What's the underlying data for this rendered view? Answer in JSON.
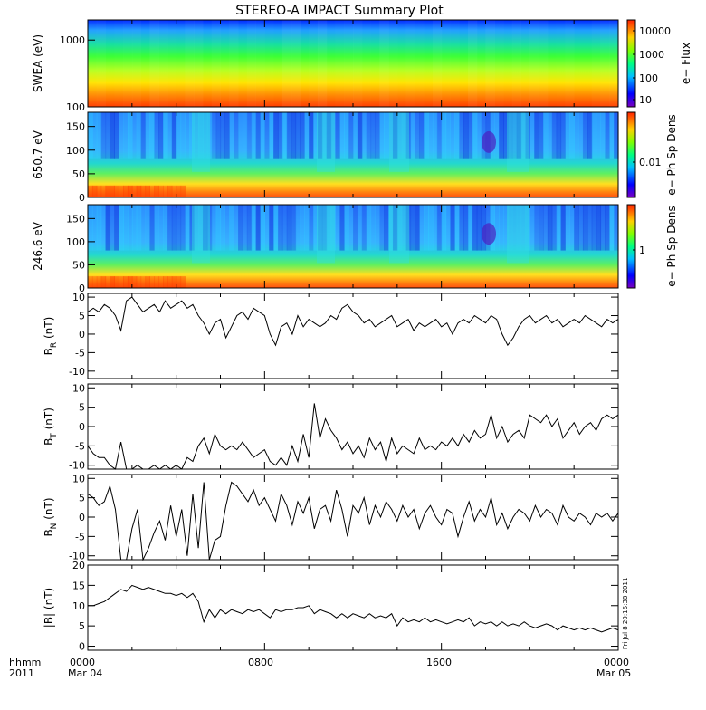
{
  "title": "STEREO-A IMPACT Summary Plot",
  "footer": {
    "left_top": "hhmm",
    "left_bottom": "2011",
    "time_ticks": [
      "0000",
      "0800",
      "1600",
      "0000"
    ],
    "date_ticks": [
      "Mar 04",
      "",
      "",
      "Mar 05"
    ],
    "stamp": "Fri Jul  8 20:16:38 2011"
  },
  "colors": {
    "line": "#000000",
    "frame": "#000000",
    "spectrogram_base": "#2a6cff"
  },
  "chart_data": [
    {
      "type": "heatmap",
      "name": "swea-flux",
      "ylabel": "SWEA (eV)",
      "yscale": "log",
      "y_ticks": [
        "1000",
        "100"
      ],
      "y_tick_values": [
        1000,
        100
      ],
      "ylim": [
        100,
        2000
      ],
      "colorbar_label": "e− Flux",
      "colorbar_ticks": [
        "10000",
        "1000",
        "100",
        "10"
      ],
      "colorbar_scale": "log",
      "description_rows_top_to_bottom": [
        "blue",
        "cyan",
        "green",
        "yellow",
        "orange",
        "red"
      ]
    },
    {
      "type": "heatmap",
      "name": "pad-650",
      "ylabel": "650.7 eV",
      "y_ticks": [
        "150",
        "100",
        "50",
        "0"
      ],
      "y_tick_values": [
        150,
        100,
        50,
        0
      ],
      "ylim": [
        0,
        180
      ],
      "colorbar_label": "e− Ph Sp Dens",
      "colorbar_ticks": [
        "0.01"
      ]
    },
    {
      "type": "heatmap",
      "name": "pad-246",
      "ylabel": "246.6 eV",
      "y_ticks": [
        "150",
        "100",
        "50",
        "0"
      ],
      "y_tick_values": [
        150,
        100,
        50,
        0
      ],
      "ylim": [
        0,
        180
      ],
      "colorbar_label": "e− Ph Sp Dens",
      "colorbar_ticks": [
        "1"
      ]
    },
    {
      "type": "line",
      "name": "br",
      "ylabel_main": "B",
      "ylabel_sub": "R",
      "ylabel_unit": " (nT)",
      "ylim": [
        -12,
        11
      ],
      "y_ticks": [
        "10",
        "5",
        "0",
        "-5",
        "-10"
      ],
      "y_tick_values": [
        10,
        5,
        0,
        -5,
        -10
      ],
      "x": [
        0,
        0.25,
        0.5,
        0.75,
        1,
        1.25,
        1.5,
        1.75,
        2,
        2.25,
        2.5,
        2.75,
        3,
        3.25,
        3.5,
        3.75,
        4,
        4.25,
        4.5,
        4.75,
        5,
        5.25,
        5.5,
        5.75,
        6,
        6.25,
        6.5,
        6.75,
        7,
        7.25,
        7.5,
        7.75,
        8,
        8.25,
        8.5,
        8.75,
        9,
        9.25,
        9.5,
        9.75,
        10,
        10.25,
        10.5,
        10.75,
        11,
        11.25,
        11.5,
        11.75,
        12,
        12.25,
        12.5,
        12.75,
        13,
        13.25,
        13.5,
        13.75,
        14,
        14.25,
        14.5,
        14.75,
        15,
        15.25,
        15.5,
        15.75,
        16,
        16.25,
        16.5,
        16.75,
        17,
        17.25,
        17.5,
        17.75,
        18,
        18.25,
        18.5,
        18.75,
        19,
        19.25,
        19.5,
        19.75,
        20,
        20.25,
        20.5,
        20.75,
        21,
        21.25,
        21.5,
        21.75,
        22,
        22.25,
        22.5,
        22.75,
        23,
        23.25,
        23.5,
        23.75,
        24
      ],
      "values": [
        6,
        7,
        6,
        8,
        7,
        5,
        1,
        9,
        10,
        8,
        6,
        7,
        8,
        6,
        9,
        7,
        8,
        9,
        7,
        8,
        5,
        3,
        0,
        3,
        4,
        -1,
        2,
        5,
        6,
        4,
        7,
        6,
        5,
        0,
        -3,
        2,
        3,
        0,
        5,
        2,
        4,
        3,
        2,
        3,
        5,
        4,
        7,
        8,
        6,
        5,
        3,
        4,
        2,
        3,
        4,
        5,
        2,
        3,
        4,
        1,
        3,
        2,
        3,
        4,
        2,
        3,
        0,
        3,
        4,
        3,
        5,
        4,
        3,
        5,
        4,
        0,
        -3,
        -1,
        2,
        4,
        5,
        3,
        4,
        5,
        3,
        4,
        2,
        3,
        4,
        3,
        5,
        4,
        3,
        2,
        4,
        3,
        4
      ]
    },
    {
      "type": "line",
      "name": "bt",
      "ylabel_main": "B",
      "ylabel_sub": "T",
      "ylabel_unit": " (nT)",
      "ylim": [
        -11,
        11
      ],
      "y_ticks": [
        "10",
        "5",
        "0",
        "-5",
        "-10"
      ],
      "y_tick_values": [
        10,
        5,
        0,
        -5,
        -10
      ],
      "x": [
        0,
        0.25,
        0.5,
        0.75,
        1,
        1.25,
        1.5,
        1.75,
        2,
        2.25,
        2.5,
        2.75,
        3,
        3.25,
        3.5,
        3.75,
        4,
        4.25,
        4.5,
        4.75,
        5,
        5.25,
        5.5,
        5.75,
        6,
        6.25,
        6.5,
        6.75,
        7,
        7.25,
        7.5,
        7.75,
        8,
        8.25,
        8.5,
        8.75,
        9,
        9.25,
        9.5,
        9.75,
        10,
        10.25,
        10.5,
        10.75,
        11,
        11.25,
        11.5,
        11.75,
        12,
        12.25,
        12.5,
        12.75,
        13,
        13.25,
        13.5,
        13.75,
        14,
        14.25,
        14.5,
        14.75,
        15,
        15.25,
        15.5,
        15.75,
        16,
        16.25,
        16.5,
        16.75,
        17,
        17.25,
        17.5,
        17.75,
        18,
        18.25,
        18.5,
        18.75,
        19,
        19.25,
        19.5,
        19.75,
        20,
        20.25,
        20.5,
        20.75,
        21,
        21.25,
        21.5,
        21.75,
        22,
        22.25,
        22.5,
        22.75,
        23,
        23.25,
        23.5,
        23.75,
        24
      ],
      "values": [
        -5,
        -7,
        -8,
        -8,
        -10,
        -11,
        -4,
        -11,
        -11,
        -10,
        -11,
        -11,
        -10,
        -11,
        -10,
        -11,
        -10,
        -11,
        -8,
        -9,
        -5,
        -3,
        -7,
        -2,
        -5,
        -6,
        -5,
        -6,
        -4,
        -6,
        -8,
        -7,
        -6,
        -9,
        -10,
        -8,
        -10,
        -5,
        -9,
        -2,
        -8,
        6,
        -3,
        2,
        -1,
        -3,
        -6,
        -4,
        -7,
        -5,
        -8,
        -3,
        -6,
        -4,
        -9,
        -3,
        -7,
        -5,
        -6,
        -7,
        -3,
        -6,
        -5,
        -6,
        -4,
        -5,
        -3,
        -5,
        -2,
        -4,
        -1,
        -3,
        -2,
        3,
        -3,
        0,
        -4,
        -2,
        -1,
        -3,
        3,
        2,
        1,
        3,
        0,
        2,
        -3,
        -1,
        1,
        -2,
        0,
        1,
        -1,
        2,
        3,
        2,
        3
      ]
    },
    {
      "type": "line",
      "name": "bn",
      "ylabel_main": "B",
      "ylabel_sub": "N",
      "ylabel_unit": " (nT)",
      "ylim": [
        -11,
        11
      ],
      "y_ticks": [
        "10",
        "5",
        "0",
        "-5",
        "-10"
      ],
      "y_tick_values": [
        10,
        5,
        0,
        -5,
        -10
      ],
      "x": [
        0,
        0.25,
        0.5,
        0.75,
        1,
        1.25,
        1.5,
        1.75,
        2,
        2.25,
        2.5,
        2.75,
        3,
        3.25,
        3.5,
        3.75,
        4,
        4.25,
        4.5,
        4.75,
        5,
        5.25,
        5.5,
        5.75,
        6,
        6.25,
        6.5,
        6.75,
        7,
        7.25,
        7.5,
        7.75,
        8,
        8.25,
        8.5,
        8.75,
        9,
        9.25,
        9.5,
        9.75,
        10,
        10.25,
        10.5,
        10.75,
        11,
        11.25,
        11.5,
        11.75,
        12,
        12.25,
        12.5,
        12.75,
        13,
        13.25,
        13.5,
        13.75,
        14,
        14.25,
        14.5,
        14.75,
        15,
        15.25,
        15.5,
        15.75,
        16,
        16.25,
        16.5,
        16.75,
        17,
        17.25,
        17.5,
        17.75,
        18,
        18.25,
        18.5,
        18.75,
        19,
        19.25,
        19.5,
        19.75,
        20,
        20.25,
        20.5,
        20.75,
        21,
        21.25,
        21.5,
        21.75,
        22,
        22.25,
        22.5,
        22.75,
        23,
        23.25,
        23.5,
        23.75,
        24
      ],
      "values": [
        6,
        5,
        3,
        4,
        8,
        2,
        -11,
        -11,
        -3,
        2,
        -11,
        -8,
        -4,
        -1,
        -6,
        3,
        -5,
        2,
        -10,
        6,
        -8,
        9,
        -11,
        -6,
        -5,
        3,
        9,
        8,
        6,
        4,
        7,
        3,
        5,
        2,
        -1,
        6,
        3,
        -2,
        4,
        1,
        5,
        -3,
        2,
        3,
        -1,
        7,
        2,
        -5,
        3,
        1,
        5,
        -2,
        3,
        0,
        4,
        2,
        -1,
        3,
        0,
        2,
        -3,
        1,
        3,
        0,
        -2,
        2,
        1,
        -5,
        0,
        4,
        -1,
        2,
        0,
        5,
        -2,
        1,
        -3,
        0,
        2,
        1,
        -1,
        3,
        0,
        2,
        1,
        -2,
        3,
        0,
        -1,
        1,
        0,
        -2,
        1,
        0,
        1,
        -1,
        1
      ]
    },
    {
      "type": "line",
      "name": "bmag",
      "ylabel_main": "|B|",
      "ylabel_sub": "",
      "ylabel_unit": " (nT)",
      "ylim": [
        -1,
        20
      ],
      "y_ticks": [
        "20",
        "15",
        "10",
        "5",
        "0"
      ],
      "y_tick_values": [
        20,
        15,
        10,
        5,
        0
      ],
      "x": [
        0,
        0.25,
        0.5,
        0.75,
        1,
        1.25,
        1.5,
        1.75,
        2,
        2.25,
        2.5,
        2.75,
        3,
        3.25,
        3.5,
        3.75,
        4,
        4.25,
        4.5,
        4.75,
        5,
        5.25,
        5.5,
        5.75,
        6,
        6.25,
        6.5,
        6.75,
        7,
        7.25,
        7.5,
        7.75,
        8,
        8.25,
        8.5,
        8.75,
        9,
        9.25,
        9.5,
        9.75,
        10,
        10.25,
        10.5,
        10.75,
        11,
        11.25,
        11.5,
        11.75,
        12,
        12.25,
        12.5,
        12.75,
        13,
        13.25,
        13.5,
        13.75,
        14,
        14.25,
        14.5,
        14.75,
        15,
        15.25,
        15.5,
        15.75,
        16,
        16.25,
        16.5,
        16.75,
        17,
        17.25,
        17.5,
        17.75,
        18,
        18.25,
        18.5,
        18.75,
        19,
        19.25,
        19.5,
        19.75,
        20,
        20.25,
        20.5,
        20.75,
        21,
        21.25,
        21.5,
        21.75,
        22,
        22.25,
        22.5,
        22.75,
        23,
        23.25,
        23.5,
        23.75,
        24
      ],
      "values": [
        10,
        10,
        10.5,
        11,
        12,
        13,
        14,
        13.5,
        15,
        14.5,
        14,
        14.5,
        14,
        13.5,
        13,
        13,
        12.5,
        13,
        12,
        13,
        11,
        6,
        9,
        7,
        9,
        8,
        9,
        8.5,
        8,
        9,
        8.5,
        9,
        8,
        7,
        9,
        8.5,
        9,
        9,
        9.5,
        9.5,
        10,
        8,
        9,
        8.5,
        8,
        7,
        8,
        7,
        8,
        7.5,
        7,
        8,
        7,
        7.5,
        7,
        8,
        5,
        7,
        6,
        6.5,
        6,
        7,
        6,
        6.5,
        6,
        5.5,
        6,
        6.5,
        6,
        7,
        5,
        6,
        5.5,
        6,
        5,
        6,
        5,
        5.5,
        5,
        6,
        5,
        4.5,
        5,
        5.5,
        5,
        4,
        5,
        4.5,
        4,
        4.5,
        4,
        4.5,
        4,
        3.5,
        4,
        4.5,
        4
      ]
    }
  ]
}
